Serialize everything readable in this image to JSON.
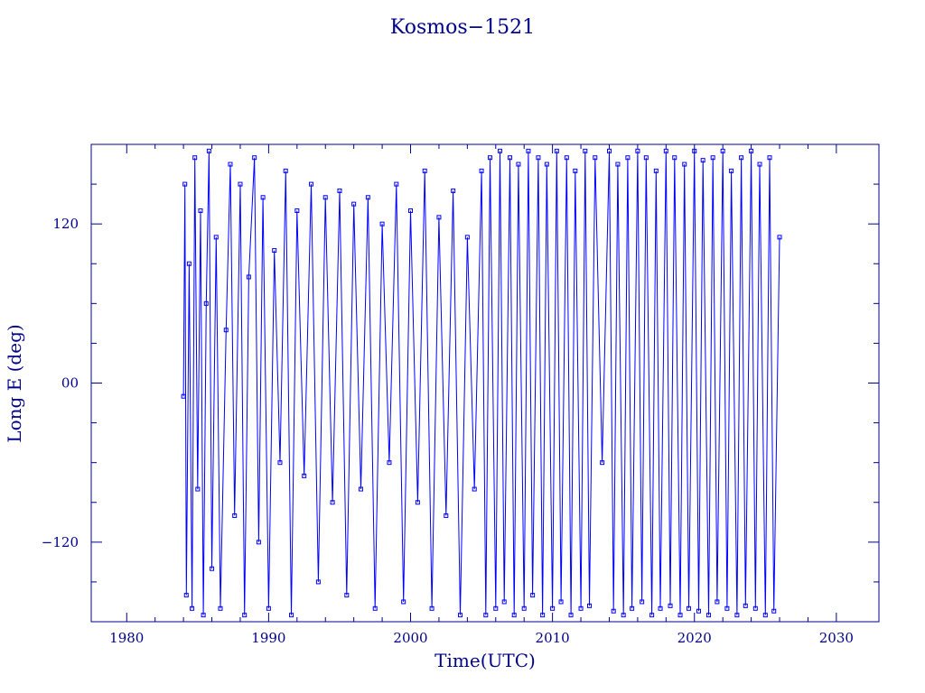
{
  "chart_data": {
    "type": "line",
    "title": "Kosmos−1521",
    "xlabel": "Time(UTC)",
    "ylabel": "Long E (deg)",
    "xlim": [
      1977.5,
      2033
    ],
    "ylim": [
      -180,
      180
    ],
    "x_ticks": [
      {
        "value": 1980,
        "label": "1980"
      },
      {
        "value": 1990,
        "label": "1990"
      },
      {
        "value": 2000,
        "label": "2000"
      },
      {
        "value": 2010,
        "label": "2010"
      },
      {
        "value": 2020,
        "label": "2020"
      },
      {
        "value": 2030,
        "label": "2030"
      }
    ],
    "y_ticks": [
      {
        "value": 120,
        "label": "120"
      },
      {
        "value": 0,
        "label": "00"
      },
      {
        "value": -120,
        "label": "−120"
      }
    ],
    "grid": false,
    "color": "#0000ff",
    "axis_color": "#00008b",
    "markers": "square",
    "series": [
      {
        "x": [
          1984.0,
          1984.1,
          1984.2,
          1984.4,
          1984.6,
          1984.8,
          1985.0,
          1985.2,
          1985.4,
          1985.6,
          1985.8,
          1986.0,
          1986.3,
          1986.6,
          1987.0,
          1987.3,
          1987.6,
          1988.0,
          1988.3,
          1988.6,
          1989.0,
          1989.3,
          1989.6,
          1990.0,
          1990.4,
          1990.8,
          1991.2,
          1991.6,
          1992.0,
          1992.5,
          1993.0,
          1993.5,
          1994.0,
          1994.5,
          1995.0,
          1995.5,
          1996.0,
          1996.5,
          1997.0,
          1997.5,
          1998.0,
          1998.5,
          1999.0,
          1999.5,
          2000.0,
          2000.5,
          2001.0,
          2001.5,
          2002.0,
          2002.5,
          2003.0,
          2003.5,
          2004.0,
          2004.5,
          2005.0,
          2005.3,
          2005.6,
          2006.0,
          2006.3,
          2006.6,
          2007.0,
          2007.3,
          2007.6,
          2008.0,
          2008.3,
          2008.6,
          2009.0,
          2009.3,
          2009.6,
          2010.0,
          2010.3,
          2010.6,
          2011.0,
          2011.3,
          2011.6,
          2012.0,
          2012.3,
          2012.6,
          2013.0,
          2013.5,
          2014.0,
          2014.3,
          2014.6,
          2015.0,
          2015.3,
          2015.6,
          2016.0,
          2016.3,
          2016.6,
          2017.0,
          2017.3,
          2017.6,
          2018.0,
          2018.3,
          2018.6,
          2019.0,
          2019.3,
          2019.6,
          2020.0,
          2020.3,
          2020.6,
          2021.0,
          2021.3,
          2021.6,
          2022.0,
          2022.3,
          2022.6,
          2023.0,
          2023.3,
          2023.6,
          2024.0,
          2024.3,
          2024.6,
          2025.0,
          2025.3,
          2025.6,
          2026.0
        ],
        "y": [
          -10,
          150,
          -160,
          90,
          -170,
          170,
          -80,
          130,
          -175,
          60,
          175,
          -140,
          110,
          -170,
          40,
          165,
          -100,
          150,
          -175,
          80,
          170,
          -120,
          140,
          -170,
          100,
          -60,
          160,
          -175,
          130,
          -70,
          150,
          -150,
          140,
          -90,
          145,
          -160,
          135,
          -80,
          140,
          -170,
          120,
          -60,
          150,
          -165,
          130,
          -90,
          160,
          -170,
          125,
          -100,
          145,
          -175,
          110,
          -80,
          160,
          -175,
          170,
          -170,
          175,
          -165,
          170,
          -175,
          165,
          -170,
          175,
          -160,
          170,
          -175,
          165,
          -170,
          175,
          -165,
          170,
          -175,
          160,
          -170,
          175,
          -168,
          170,
          -60,
          175,
          -172,
          165,
          -175,
          170,
          -170,
          175,
          -165,
          170,
          -175,
          160,
          -170,
          175,
          -168,
          170,
          -175,
          165,
          -170,
          175,
          -172,
          168,
          -175,
          170,
          -165,
          175,
          -170,
          160,
          -175,
          170,
          -168,
          175,
          -170,
          165,
          -175,
          170,
          -172,
          110
        ]
      }
    ]
  }
}
